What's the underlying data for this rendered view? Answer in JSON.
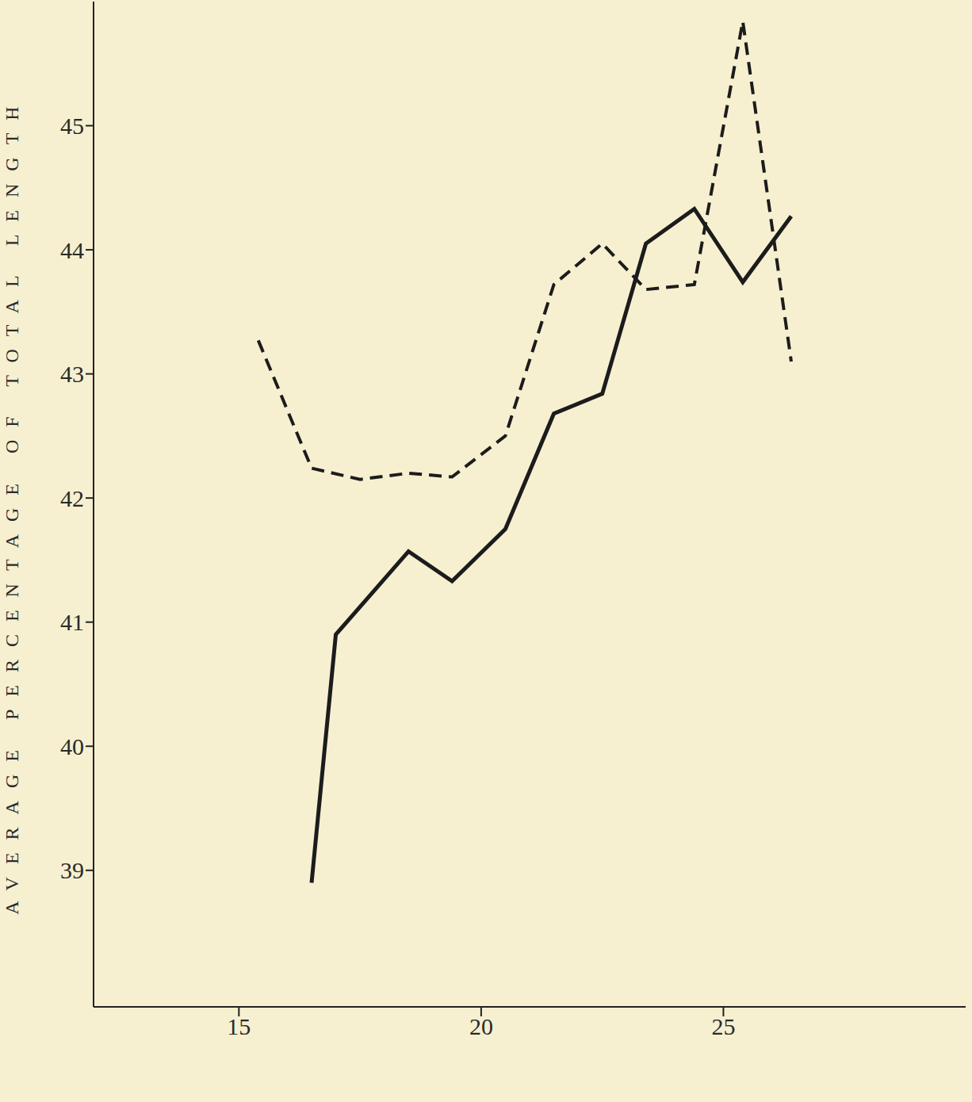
{
  "chart_data": {
    "type": "line",
    "y_label": "AVERAGE PERCENTAGE OF TOTAL LENGTH",
    "xlim": [
      12,
      30
    ],
    "xticks": [
      15,
      20,
      25
    ],
    "ylim": [
      37.9,
      46.0
    ],
    "yticks": [
      39,
      40,
      41,
      42,
      43,
      44,
      45
    ],
    "grid": false,
    "series": [
      {
        "color": "#1c1c1c",
        "line_style": "solid",
        "x": [
          16.5,
          17.0,
          18.5,
          19.4,
          20.5,
          21.5,
          22.5,
          23.4,
          24.4,
          25.4,
          26.4
        ],
        "values": [
          38.9,
          40.9,
          41.57,
          41.33,
          41.75,
          42.68,
          42.84,
          44.05,
          44.33,
          43.74,
          44.27
        ]
      },
      {
        "color": "#1c1c1c",
        "line_style": "dashed",
        "x": [
          15.4,
          16.5,
          17.5,
          18.5,
          19.4,
          20.5,
          21.5,
          22.5,
          23.4,
          24.4,
          25.4,
          26.4
        ],
        "values": [
          43.27,
          42.24,
          42.15,
          42.2,
          42.17,
          42.5,
          43.72,
          44.05,
          43.68,
          43.72,
          45.84,
          43.1
        ]
      }
    ]
  }
}
